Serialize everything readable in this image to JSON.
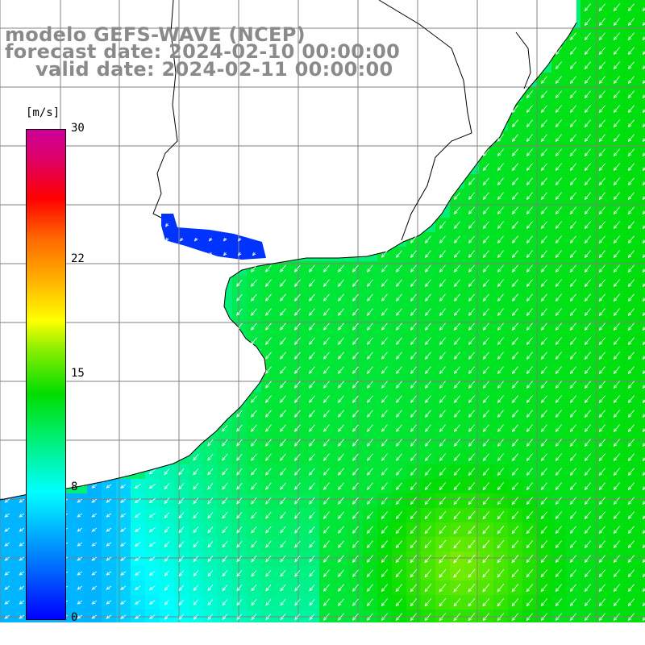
{
  "title": {
    "line1": "modelo GEFS-WAVE (NCEP)",
    "line2": "forecast date: 2024-02-10 00:00:00",
    "line3": "valid date: 2024-02-11 00:00:00"
  },
  "colorbar": {
    "unit": "[m/s]",
    "ticks": [
      "30",
      "22",
      "15",
      "8",
      "0"
    ],
    "tick_values": [
      30,
      22,
      15,
      8,
      0
    ],
    "vmin": 0,
    "vmax": 30
  },
  "colors": {
    "land": "#ffffff",
    "coastline": "#000000",
    "grid": "#808080",
    "arrows": "#ffffff",
    "title": "#8a8a8a"
  },
  "map": {
    "variable": "wind speed and direction",
    "field_description_range": [
      0,
      30
    ],
    "wind_direction": "southwest-pointing"
  }
}
